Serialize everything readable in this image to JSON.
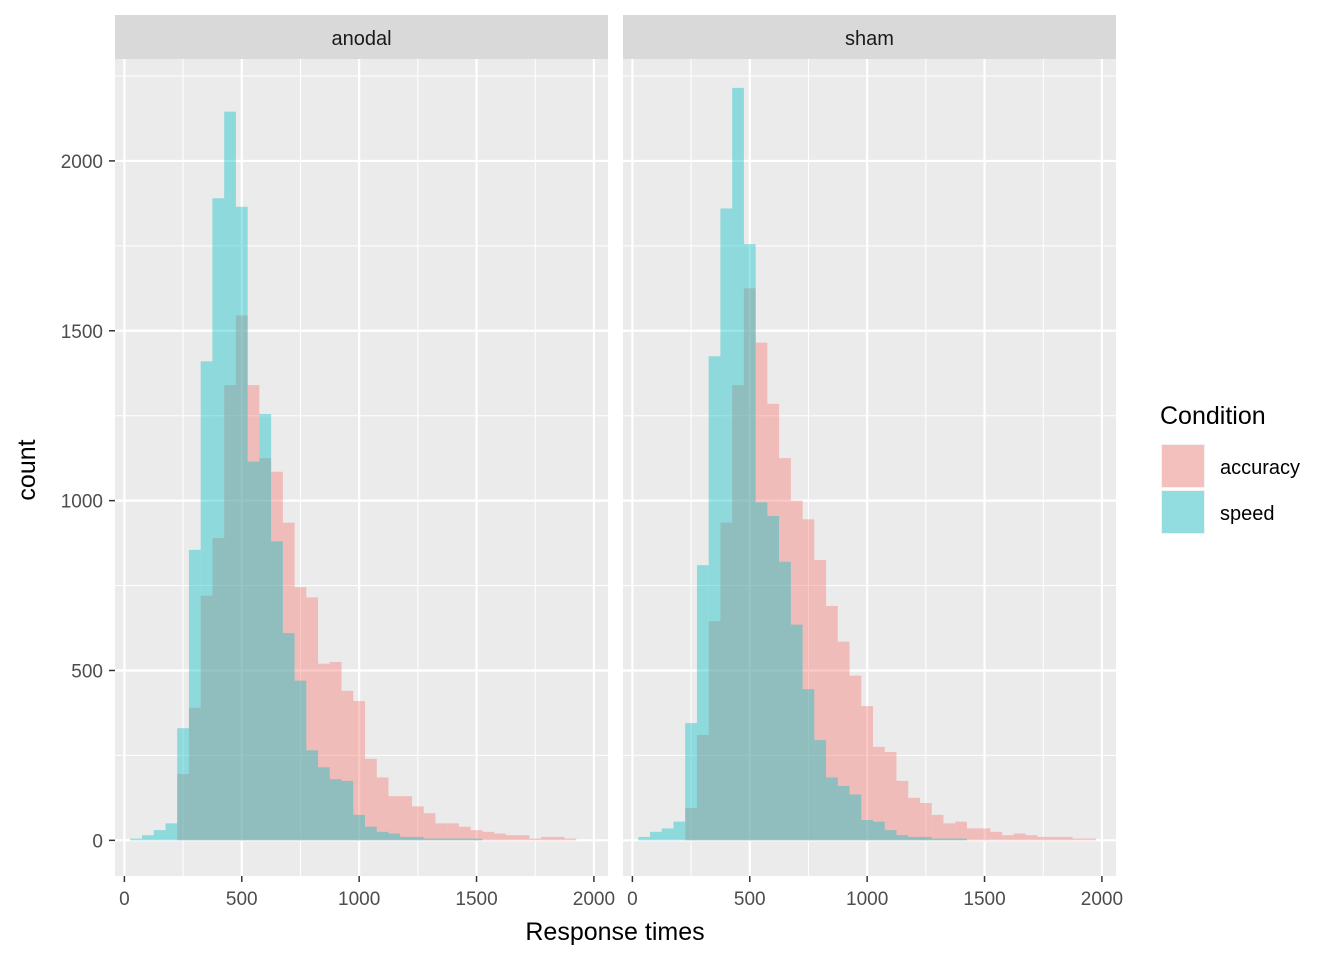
{
  "chart_data": {
    "type": "histogram",
    "title": "",
    "xlabel": "Response times",
    "ylabel": "count",
    "xlim": [
      -40,
      2060
    ],
    "ylim": [
      -105,
      2300
    ],
    "x_ticks": [
      0,
      500,
      1000,
      1500,
      2000
    ],
    "x_tick_labels": [
      "0",
      "500",
      "1000",
      "1500",
      "2000"
    ],
    "y_ticks": [
      0,
      500,
      1000,
      1500,
      2000
    ],
    "y_tick_labels": [
      "0",
      "500",
      "1000",
      "1500",
      "2000"
    ],
    "grid": true,
    "legend": {
      "title": "Condition",
      "position": "right",
      "entries": [
        {
          "name": "accuracy",
          "color": "#F8766D"
        },
        {
          "name": "speed",
          "color": "#00BFC4"
        }
      ]
    },
    "fill_opacity": 0.4,
    "bin_width": 50,
    "bin_starts": [
      -25,
      25,
      75,
      125,
      175,
      225,
      275,
      325,
      375,
      425,
      475,
      525,
      575,
      625,
      675,
      725,
      775,
      825,
      875,
      925,
      975,
      1025,
      1075,
      1125,
      1175,
      1225,
      1275,
      1325,
      1375,
      1425,
      1475,
      1525,
      1575,
      1625,
      1675,
      1725,
      1775,
      1825,
      1875,
      1925,
      1975
    ],
    "facets": [
      {
        "label": "anodal",
        "series": [
          {
            "name": "accuracy",
            "values": [
              0,
              0,
              0,
              0,
              0,
              195,
              390,
              720,
              890,
              1340,
              1545,
              1340,
              1125,
              1085,
              935,
              745,
              715,
              520,
              525,
              440,
              410,
              240,
              185,
              130,
              130,
              100,
              80,
              50,
              50,
              40,
              30,
              25,
              20,
              15,
              15,
              5,
              10,
              10,
              5,
              0,
              0
            ]
          },
          {
            "name": "speed",
            "values": [
              0,
              5,
              15,
              30,
              50,
              330,
              855,
              1410,
              1890,
              2145,
              1865,
              1115,
              1255,
              880,
              610,
              470,
              265,
              215,
              180,
              175,
              75,
              40,
              25,
              20,
              10,
              10,
              5,
              5,
              5,
              5,
              5,
              0,
              0,
              0,
              0,
              0,
              0,
              0,
              0,
              0,
              0
            ]
          }
        ]
      },
      {
        "label": "sham",
        "series": [
          {
            "name": "accuracy",
            "values": [
              0,
              0,
              0,
              0,
              0,
              95,
              310,
              645,
              935,
              1340,
              1625,
              1465,
              1285,
              1125,
              1000,
              945,
              825,
              690,
              585,
              485,
              395,
              275,
              260,
              175,
              125,
              110,
              75,
              50,
              55,
              35,
              35,
              25,
              15,
              20,
              15,
              10,
              10,
              10,
              5,
              5,
              0
            ]
          },
          {
            "name": "speed",
            "values": [
              0,
              10,
              25,
              35,
              55,
              345,
              810,
              1425,
              1860,
              2215,
              1755,
              995,
              955,
              820,
              635,
              445,
              295,
              185,
              160,
              135,
              60,
              55,
              30,
              15,
              10,
              10,
              5,
              5,
              5,
              0,
              0,
              0,
              0,
              0,
              0,
              0,
              0,
              0,
              0,
              0,
              0
            ]
          }
        ]
      }
    ]
  }
}
